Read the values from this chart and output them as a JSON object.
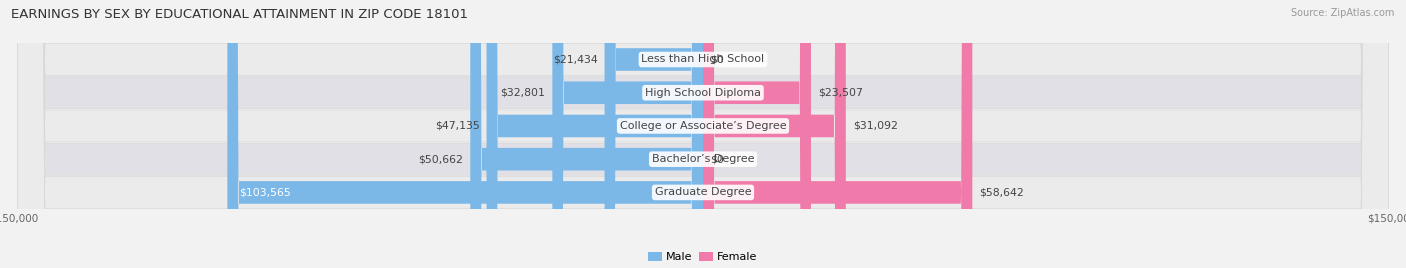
{
  "title": "EARNINGS BY SEX BY EDUCATIONAL ATTAINMENT IN ZIP CODE 18101",
  "source": "Source: ZipAtlas.com",
  "categories": [
    "Less than High School",
    "High School Diploma",
    "College or Associate’s Degree",
    "Bachelor’s Degree",
    "Graduate Degree"
  ],
  "male_values": [
    21434,
    32801,
    47135,
    50662,
    103565
  ],
  "female_values": [
    0,
    23507,
    31092,
    0,
    58642
  ],
  "male_color": "#7BB8E8",
  "female_color": "#F07AAA",
  "max_value": 150000,
  "bg_color": "#F2F2F2",
  "row_bg_light": "#EFEFEF",
  "row_bg_dark": "#E2E2E8",
  "title_fontsize": 9.5,
  "label_fontsize": 8.0,
  "value_fontsize": 7.8,
  "tick_fontsize": 7.5
}
